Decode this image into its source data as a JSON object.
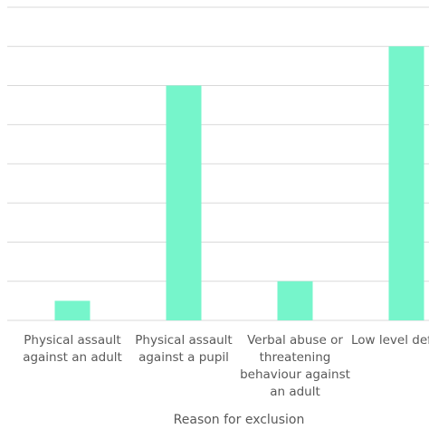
{
  "chart_data": {
    "type": "bar",
    "x_label": "Reason for exclusion",
    "categories": [
      "Physical assault against an adult",
      "Physical assault against a pupil",
      "Verbal abuse or threatening behaviour against an adult",
      "Low level defiance"
    ],
    "values": [
      0.5,
      6,
      1,
      7
    ],
    "color": "#76f5cb",
    "ylim": [
      0,
      8
    ],
    "yticks": [
      0,
      1,
      2,
      3,
      4,
      5,
      6,
      7,
      8
    ],
    "grid": true
  }
}
